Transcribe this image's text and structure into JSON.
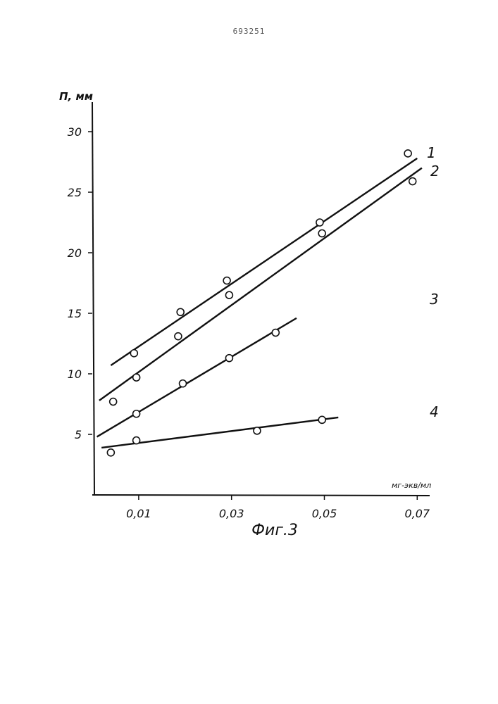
{
  "header": {
    "doc_number": "693251"
  },
  "chart_data": {
    "type": "scatter",
    "caption": "Фиг.3",
    "ylabel": "П, мм",
    "xlabel": "мг-экв/мл",
    "xlim": [
      0,
      0.072
    ],
    "ylim": [
      0,
      30
    ],
    "x_ticks": [
      0.01,
      0.03,
      0.05,
      0.07
    ],
    "x_tick_labels": [
      "0,01",
      "0,03",
      "0,05",
      "0,07"
    ],
    "y_ticks": [
      5,
      10,
      15,
      20,
      25,
      30
    ],
    "y_tick_labels": [
      "5",
      "10",
      "15",
      "20",
      "25",
      "30"
    ],
    "grid": false,
    "series": [
      {
        "name": "1",
        "points": [
          [
            0.009,
            11.7
          ],
          [
            0.019,
            15.1
          ],
          [
            0.029,
            17.7
          ],
          [
            0.049,
            22.5
          ],
          [
            0.068,
            28.2
          ]
        ],
        "fit": [
          [
            0.004,
            10.7
          ],
          [
            0.07,
            27.8
          ]
        ]
      },
      {
        "name": "2",
        "points": [
          [
            0.0095,
            9.7
          ],
          [
            0.0185,
            13.1
          ],
          [
            0.0295,
            16.5
          ],
          [
            0.0495,
            21.6
          ],
          [
            0.069,
            25.9
          ]
        ],
        "fit": [
          [
            0.0015,
            7.8
          ],
          [
            0.071,
            27.0
          ]
        ]
      },
      {
        "name": "3",
        "points": [
          [
            0.0045,
            7.7
          ],
          [
            0.0095,
            6.7
          ],
          [
            0.0195,
            9.2
          ],
          [
            0.0295,
            11.3
          ],
          [
            0.0395,
            13.4
          ]
        ],
        "fit": [
          [
            0.001,
            4.8
          ],
          [
            0.044,
            14.6
          ]
        ]
      },
      {
        "name": "4",
        "points": [
          [
            0.004,
            3.5
          ],
          [
            0.0095,
            4.5
          ],
          [
            0.0355,
            5.3
          ],
          [
            0.0495,
            6.2
          ]
        ],
        "fit": [
          [
            0.002,
            3.9
          ],
          [
            0.053,
            6.4
          ]
        ]
      }
    ]
  }
}
